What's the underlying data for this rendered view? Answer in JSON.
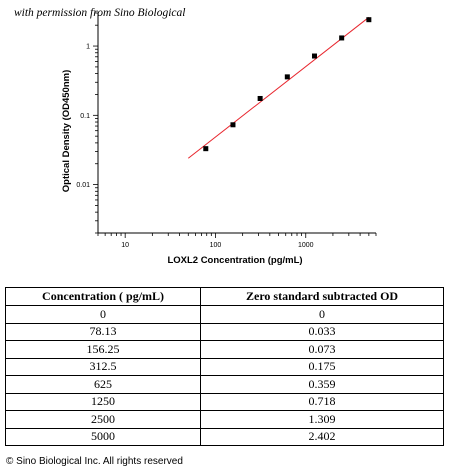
{
  "watermark": "with permission from Sino Biological",
  "chart_data": {
    "type": "scatter",
    "title": "",
    "xlabel": "LOXL2 Concentration (pg/mL)",
    "ylabel": "Optical Density (OD450nm)",
    "xscale": "log",
    "yscale": "log",
    "xlim": [
      5,
      6000
    ],
    "ylim": [
      0.002,
      3
    ],
    "x_ticks": [
      10,
      100,
      1000
    ],
    "x_tick_labels": [
      "10",
      "100",
      "1000"
    ],
    "y_ticks": [
      0.01,
      0.1,
      1
    ],
    "y_tick_labels": [
      "0.01",
      "0.1",
      "1"
    ],
    "grid": false,
    "series": [
      {
        "x": [
          78.13,
          156.25,
          312.5,
          625,
          1250,
          2500,
          5000
        ],
        "y": [
          0.033,
          0.073,
          0.175,
          0.359,
          0.718,
          1.309,
          2.402
        ]
      }
    ],
    "fit_line": {
      "x": [
        50,
        5000
      ],
      "y": [
        0.024,
        2.6
      ],
      "color": "#e8262e"
    },
    "marker_color": "#000000"
  },
  "table": {
    "headers": [
      "Concentration ( pg/mL)",
      "Zero standard subtracted OD"
    ],
    "rows": [
      [
        "0",
        "0"
      ],
      [
        "78.13",
        "0.033"
      ],
      [
        "156.25",
        "0.073"
      ],
      [
        "312.5",
        "0.175"
      ],
      [
        "625",
        "0.359"
      ],
      [
        "1250",
        "0.718"
      ],
      [
        "2500",
        "1.309"
      ],
      [
        "5000",
        "2.402"
      ]
    ]
  },
  "copyright": "© Sino Biological Inc. All rights reserved"
}
